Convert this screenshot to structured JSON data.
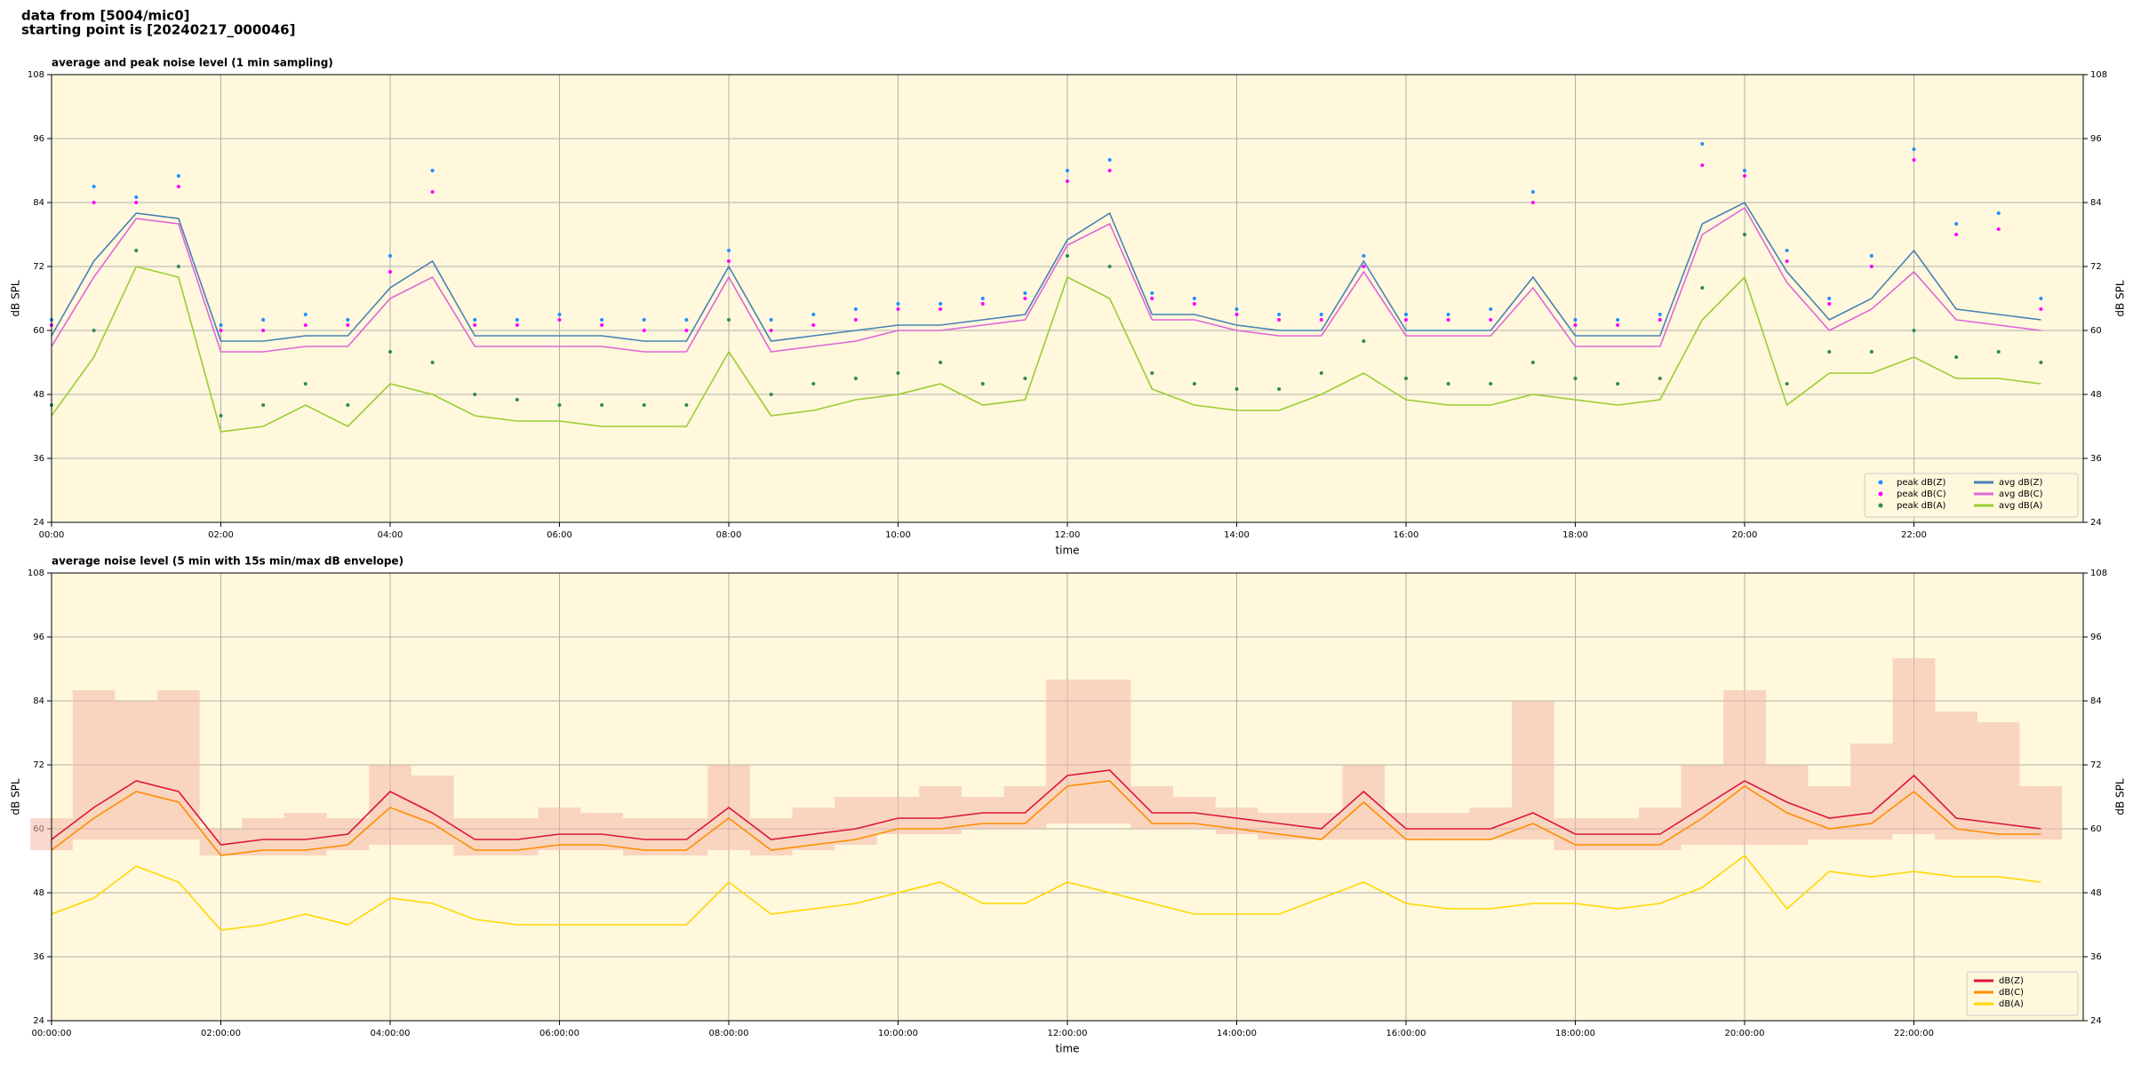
{
  "header": {
    "source": "data from [5004/mic0]",
    "start": "starting point is [20240217_000046]"
  },
  "chart_data": [
    {
      "type": "line",
      "title": "average and peak noise level (1 min sampling)",
      "xlabel": "time",
      "ylabel": "dB SPL",
      "x": [
        0,
        0.5,
        1,
        1.5,
        2,
        2.5,
        3,
        3.5,
        4,
        4.5,
        5,
        5.5,
        6,
        6.5,
        7,
        7.5,
        8,
        8.5,
        9,
        9.5,
        10,
        10.5,
        11,
        11.5,
        12,
        12.5,
        13,
        13.5,
        14,
        14.5,
        15,
        15.5,
        16,
        16.5,
        17,
        17.5,
        18,
        18.5,
        19,
        19.5,
        20,
        20.5,
        21,
        21.5,
        22,
        22.5,
        23,
        23.5
      ],
      "xlim": [
        0,
        24
      ],
      "xticks": [
        {
          "value": 0,
          "label": "00:00"
        },
        {
          "value": 2,
          "label": "02:00"
        },
        {
          "value": 4,
          "label": "04:00"
        },
        {
          "value": 6,
          "label": "06:00"
        },
        {
          "value": 8,
          "label": "08:00"
        },
        {
          "value": 10,
          "label": "10:00"
        },
        {
          "value": 12,
          "label": "12:00"
        },
        {
          "value": 14,
          "label": "14:00"
        },
        {
          "value": 16,
          "label": "16:00"
        },
        {
          "value": 18,
          "label": "18:00"
        },
        {
          "value": 20,
          "label": "20:00"
        },
        {
          "value": 22,
          "label": "22:00"
        }
      ],
      "ylim": [
        24,
        108
      ],
      "yticks": [
        24,
        36,
        48,
        60,
        72,
        84,
        96,
        108
      ],
      "grid": true,
      "legend": "lower right",
      "legend_columns": 2,
      "series": [
        {
          "name": "peak dB(Z)",
          "kind": "scatter",
          "color": "#1e90ff",
          "values": [
            62,
            87,
            85,
            89,
            61,
            62,
            63,
            62,
            74,
            90,
            62,
            62,
            63,
            62,
            62,
            62,
            75,
            62,
            63,
            64,
            65,
            65,
            66,
            67,
            90,
            92,
            67,
            66,
            64,
            63,
            63,
            74,
            63,
            63,
            64,
            86,
            62,
            62,
            63,
            95,
            90,
            75,
            66,
            74,
            94,
            80,
            82,
            66
          ]
        },
        {
          "name": "peak dB(C)",
          "kind": "scatter",
          "color": "#ff00ff",
          "values": [
            61,
            84,
            84,
            87,
            60,
            60,
            61,
            61,
            71,
            86,
            61,
            61,
            62,
            61,
            60,
            60,
            73,
            60,
            61,
            62,
            64,
            64,
            65,
            66,
            88,
            90,
            66,
            65,
            63,
            62,
            62,
            72,
            62,
            62,
            62,
            84,
            61,
            61,
            62,
            91,
            89,
            73,
            65,
            72,
            92,
            78,
            79,
            64
          ]
        },
        {
          "name": "peak dB(A)",
          "kind": "scatter",
          "color": "#2e8b57",
          "values": [
            46,
            60,
            75,
            72,
            44,
            46,
            50,
            46,
            56,
            54,
            48,
            47,
            46,
            46,
            46,
            46,
            62,
            48,
            50,
            51,
            52,
            54,
            50,
            51,
            74,
            72,
            52,
            50,
            49,
            49,
            52,
            58,
            51,
            50,
            50,
            54,
            51,
            50,
            51,
            68,
            78,
            50,
            56,
            56,
            60,
            55,
            56,
            54
          ]
        },
        {
          "name": "avg dB(Z)",
          "kind": "line",
          "color": "#4682b4",
          "values": [
            59,
            73,
            82,
            81,
            58,
            58,
            59,
            59,
            68,
            73,
            59,
            59,
            59,
            59,
            58,
            58,
            72,
            58,
            59,
            60,
            61,
            61,
            62,
            63,
            77,
            82,
            63,
            63,
            61,
            60,
            60,
            73,
            60,
            60,
            60,
            70,
            59,
            59,
            59,
            80,
            84,
            71,
            62,
            66,
            75,
            64,
            63,
            62
          ]
        },
        {
          "name": "avg dB(C)",
          "kind": "line",
          "color": "#e066d8",
          "values": [
            57,
            70,
            81,
            80,
            56,
            56,
            57,
            57,
            66,
            70,
            57,
            57,
            57,
            57,
            56,
            56,
            70,
            56,
            57,
            58,
            60,
            60,
            61,
            62,
            76,
            80,
            62,
            62,
            60,
            59,
            59,
            71,
            59,
            59,
            59,
            68,
            57,
            57,
            57,
            78,
            83,
            69,
            60,
            64,
            71,
            62,
            61,
            60
          ]
        },
        {
          "name": "avg dB(A)",
          "kind": "line",
          "color": "#9acd32",
          "values": [
            44,
            55,
            72,
            70,
            41,
            42,
            46,
            42,
            50,
            48,
            44,
            43,
            43,
            42,
            42,
            42,
            56,
            44,
            45,
            47,
            48,
            50,
            46,
            47,
            70,
            66,
            49,
            46,
            45,
            45,
            48,
            52,
            47,
            46,
            46,
            48,
            47,
            46,
            47,
            62,
            70,
            46,
            52,
            52,
            55,
            51,
            51,
            50
          ]
        }
      ]
    },
    {
      "type": "line",
      "title": "average noise level (5 min with 15s min/max dB envelope)",
      "xlabel": "time",
      "ylabel": "dB SPL",
      "x": [
        0,
        0.5,
        1,
        1.5,
        2,
        2.5,
        3,
        3.5,
        4,
        4.5,
        5,
        5.5,
        6,
        6.5,
        7,
        7.5,
        8,
        8.5,
        9,
        9.5,
        10,
        10.5,
        11,
        11.5,
        12,
        12.5,
        13,
        13.5,
        14,
        14.5,
        15,
        15.5,
        16,
        16.5,
        17,
        17.5,
        18,
        18.5,
        19,
        19.5,
        20,
        20.5,
        21,
        21.5,
        22,
        22.5,
        23,
        23.5
      ],
      "xlim": [
        0,
        24
      ],
      "xticks": [
        {
          "value": 0,
          "label": "00:00:00"
        },
        {
          "value": 2,
          "label": "02:00:00"
        },
        {
          "value": 4,
          "label": "04:00:00"
        },
        {
          "value": 6,
          "label": "06:00:00"
        },
        {
          "value": 8,
          "label": "08:00:00"
        },
        {
          "value": 10,
          "label": "10:00:00"
        },
        {
          "value": 12,
          "label": "12:00:00"
        },
        {
          "value": 14,
          "label": "14:00:00"
        },
        {
          "value": 16,
          "label": "16:00:00"
        },
        {
          "value": 18,
          "label": "18:00:00"
        },
        {
          "value": 20,
          "label": "20:00:00"
        },
        {
          "value": 22,
          "label": "22:00:00"
        }
      ],
      "ylim": [
        24,
        108
      ],
      "yticks": [
        24,
        36,
        48,
        60,
        72,
        84,
        96,
        108
      ],
      "grid": true,
      "legend": "lower right",
      "legend_columns": 1,
      "envelope": {
        "color": "#f4b8a8",
        "lower": [
          56,
          58,
          58,
          58,
          55,
          55,
          55,
          56,
          57,
          57,
          55,
          55,
          56,
          56,
          55,
          55,
          56,
          55,
          56,
          57,
          59,
          59,
          60,
          60,
          61,
          61,
          60,
          60,
          59,
          58,
          58,
          58,
          58,
          58,
          58,
          58,
          56,
          56,
          56,
          57,
          57,
          57,
          58,
          58,
          59,
          58,
          58,
          58
        ],
        "upper": [
          62,
          86,
          84,
          86,
          60,
          62,
          63,
          62,
          72,
          70,
          62,
          62,
          64,
          63,
          62,
          62,
          72,
          62,
          64,
          66,
          66,
          68,
          66,
          68,
          88,
          88,
          68,
          66,
          64,
          63,
          63,
          72,
          63,
          63,
          64,
          84,
          62,
          62,
          64,
          72,
          86,
          72,
          68,
          76,
          92,
          82,
          80,
          68
        ]
      },
      "series": [
        {
          "name": "dB(Z)",
          "kind": "line",
          "color": "#dc143c",
          "values": [
            58,
            64,
            69,
            67,
            57,
            58,
            58,
            59,
            67,
            63,
            58,
            58,
            59,
            59,
            58,
            58,
            64,
            58,
            59,
            60,
            62,
            62,
            63,
            63,
            70,
            71,
            63,
            63,
            62,
            61,
            60,
            67,
            60,
            60,
            60,
            63,
            59,
            59,
            59,
            64,
            69,
            65,
            62,
            63,
            70,
            62,
            61,
            60
          ]
        },
        {
          "name": "dB(C)",
          "kind": "line",
          "color": "#ff8c00",
          "values": [
            56,
            62,
            67,
            65,
            55,
            56,
            56,
            57,
            64,
            61,
            56,
            56,
            57,
            57,
            56,
            56,
            62,
            56,
            57,
            58,
            60,
            60,
            61,
            61,
            68,
            69,
            61,
            61,
            60,
            59,
            58,
            65,
            58,
            58,
            58,
            61,
            57,
            57,
            57,
            62,
            68,
            63,
            60,
            61,
            67,
            60,
            59,
            59
          ]
        },
        {
          "name": "dB(A)",
          "kind": "line",
          "color": "#ffd700",
          "values": [
            44,
            47,
            53,
            50,
            41,
            42,
            44,
            42,
            47,
            46,
            43,
            42,
            42,
            42,
            42,
            42,
            50,
            44,
            45,
            46,
            48,
            50,
            46,
            46,
            50,
            48,
            46,
            44,
            44,
            44,
            47,
            50,
            46,
            45,
            45,
            46,
            46,
            45,
            46,
            49,
            55,
            45,
            52,
            51,
            52,
            51,
            51,
            50
          ]
        }
      ]
    }
  ]
}
